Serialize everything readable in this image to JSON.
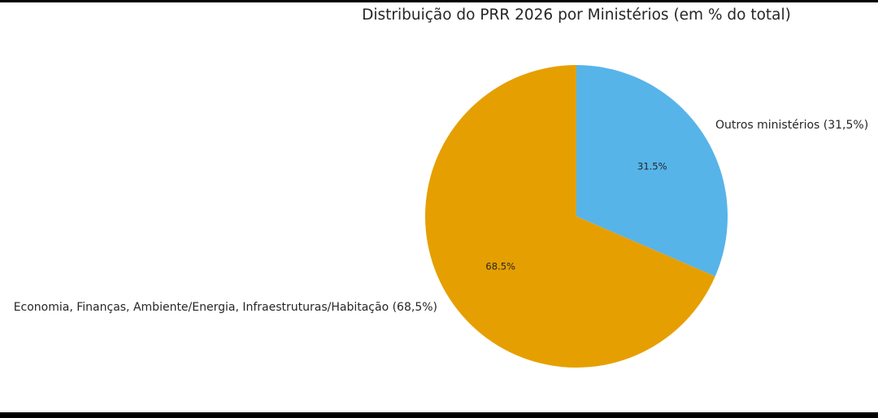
{
  "chart_data": {
    "type": "pie",
    "title": "Distribuição do PRR 2026 por Ministérios (em % do total)",
    "start_angle_deg": 90,
    "direction": "clockwise",
    "slices": [
      {
        "label": "Outros ministérios (31,5%)",
        "value": 31.5,
        "pct_label": "31.5%",
        "color": "#56B4E9"
      },
      {
        "label": "Economia, Finanças, Ambiente/Energia, Infraestruturas/Habitação (68,5%)",
        "value": 68.5,
        "pct_label": "68.5%",
        "color": "#E69F00"
      }
    ],
    "legend": null
  }
}
